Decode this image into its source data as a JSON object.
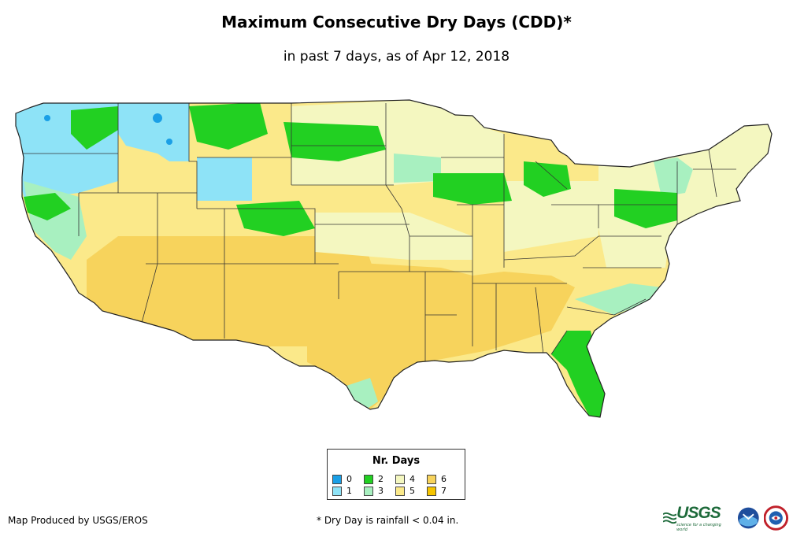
{
  "title": "Maximum Consecutive Dry Days (CDD)*",
  "subtitle": "in past 7 days, as of Apr 12, 2018",
  "legend": {
    "title": "Nr. Days",
    "items": [
      {
        "label": "0",
        "color": "#1a9fe6"
      },
      {
        "label": "1",
        "color": "#8ee3f7"
      },
      {
        "label": "2",
        "color": "#22d022"
      },
      {
        "label": "3",
        "color": "#a8f0c0"
      },
      {
        "label": "4",
        "color": "#f4f7c0"
      },
      {
        "label": "5",
        "color": "#fbe98a"
      },
      {
        "label": "6",
        "color": "#f7d35c"
      },
      {
        "label": "7",
        "color": "#f5c400"
      }
    ]
  },
  "credit": "Map Produced by USGS/EROS",
  "footnote": "* Dry Day is rainfall < 0.04 in.",
  "logos": {
    "usgs": "USGS",
    "usgs_tagline": "science for a changing world",
    "noaa": "NOAA",
    "nws": "NWS"
  },
  "map": {
    "regions": [
      {
        "name": "northwest-wet",
        "days": 1
      },
      {
        "name": "northern-rockies",
        "days": 2
      },
      {
        "name": "northern-plains",
        "days": 4
      },
      {
        "name": "southwest",
        "days": 6
      },
      {
        "name": "texas",
        "days": 6
      },
      {
        "name": "southeast",
        "days": 5
      },
      {
        "name": "florida",
        "days": 2
      },
      {
        "name": "great-lakes",
        "days": 2
      },
      {
        "name": "northeast",
        "days": 4
      }
    ]
  }
}
